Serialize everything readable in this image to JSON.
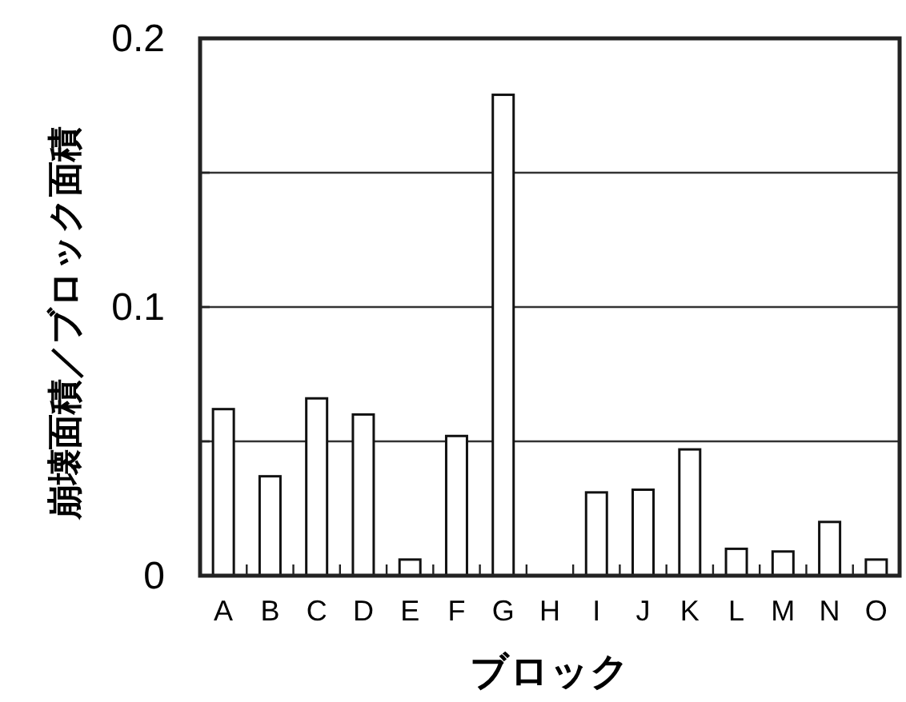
{
  "chart_data": {
    "type": "bar",
    "xlabel": "ブロック",
    "ylabel": "崩壊面積／ブロック面積",
    "categories": [
      "A",
      "B",
      "C",
      "D",
      "E",
      "F",
      "G",
      "H",
      "I",
      "J",
      "K",
      "L",
      "M",
      "N",
      "O"
    ],
    "values": [
      0.062,
      0.037,
      0.066,
      0.06,
      0.006,
      0.052,
      0.179,
      0,
      0.031,
      0.032,
      0.047,
      0.01,
      0.009,
      0.02,
      0.006
    ],
    "color": "#ffffff",
    "ylim": [
      0,
      0.2
    ],
    "yticks": [
      0,
      {
        "value": 0.05,
        "label": null
      },
      {
        "value": 0.1,
        "label": "0.1"
      },
      {
        "value": 0.15,
        "label": null
      },
      {
        "value": 0.2,
        "label": "0.2"
      }
    ],
    "grid": "y"
  }
}
